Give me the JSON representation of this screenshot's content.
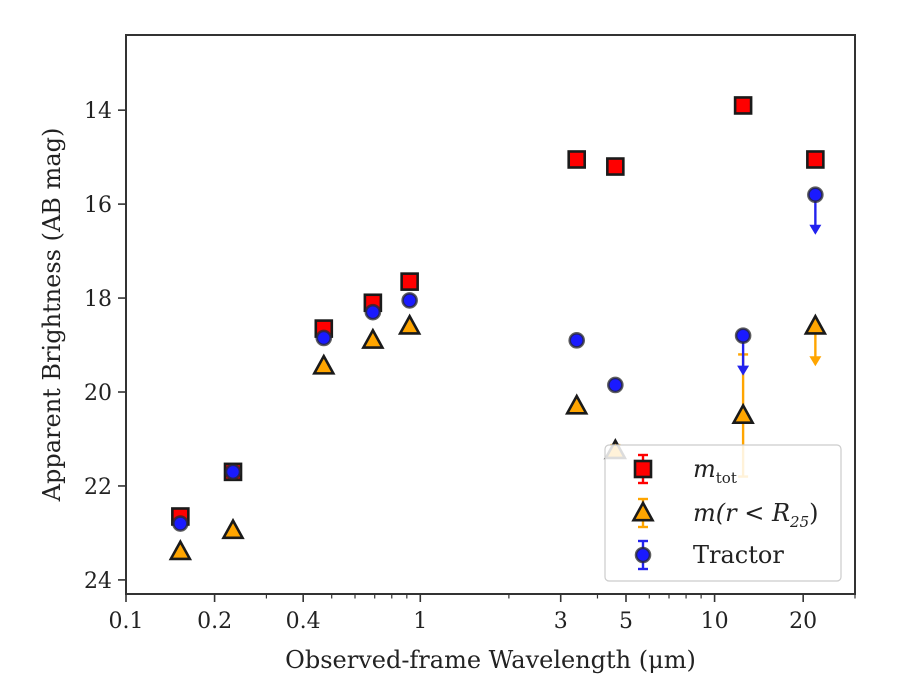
{
  "chart_data": {
    "type": "scatter",
    "title": "",
    "xlabel": "Observed-frame Wavelength (μm)",
    "ylabel": "Apparent Brightness (AB mag)",
    "xscale": "log",
    "xlim": [
      0.1,
      30
    ],
    "ylim": [
      24.3,
      12.4
    ],
    "y_inverted": true,
    "grid": false,
    "legend_placement": "lower-right",
    "xticks": [
      {
        "value": 0.1,
        "label": "0.1"
      },
      {
        "value": 0.2,
        "label": "0.2"
      },
      {
        "value": 0.4,
        "label": "0.4"
      },
      {
        "value": 1,
        "label": "1"
      },
      {
        "value": 3,
        "label": "3"
      },
      {
        "value": 5,
        "label": "5"
      },
      {
        "value": 10,
        "label": "10"
      },
      {
        "value": 20,
        "label": "20"
      }
    ],
    "yticks": [
      {
        "value": 14,
        "label": "14"
      },
      {
        "value": 16,
        "label": "16"
      },
      {
        "value": 18,
        "label": "18"
      },
      {
        "value": 20,
        "label": "20"
      },
      {
        "value": 22,
        "label": "22"
      },
      {
        "value": 24,
        "label": "24"
      }
    ],
    "series": [
      {
        "key": "m_tot",
        "legend_main": "m",
        "legend_sub": "tot",
        "legend_tail": "",
        "marker": "square",
        "color": "#ff0000",
        "errcolor": "#ff0000",
        "points": [
          {
            "x": 0.153,
            "y": 22.65,
            "err": 0.1
          },
          {
            "x": 0.231,
            "y": 21.7,
            "err": 0.06
          },
          {
            "x": 0.47,
            "y": 18.65,
            "err": 0.08
          },
          {
            "x": 0.69,
            "y": 18.1,
            "err": 0.08
          },
          {
            "x": 0.92,
            "y": 17.65,
            "err": 0.06
          },
          {
            "x": 3.4,
            "y": 15.05,
            "err": 0.04
          },
          {
            "x": 4.6,
            "y": 15.2,
            "err": 0.04
          },
          {
            "x": 12.5,
            "y": 13.9,
            "err": 0.04
          },
          {
            "x": 22.0,
            "y": 15.05,
            "err": 0.04
          }
        ]
      },
      {
        "key": "m_r25",
        "legend_main": "m(r < R",
        "legend_sub": "25",
        "legend_tail": ")",
        "marker": "triangle",
        "color": "#ffa500",
        "errcolor": "#ffa500",
        "points": [
          {
            "x": 0.153,
            "y": 23.4,
            "err": 0.06
          },
          {
            "x": 0.231,
            "y": 22.95,
            "err": 0.06
          },
          {
            "x": 0.47,
            "y": 19.45,
            "err": 0.04
          },
          {
            "x": 0.69,
            "y": 18.9,
            "err": 0.04
          },
          {
            "x": 0.92,
            "y": 18.6,
            "err": 0.04
          },
          {
            "x": 3.4,
            "y": 20.3,
            "err": 0.04
          },
          {
            "x": 4.6,
            "y": 21.25,
            "err": 0.12
          },
          {
            "x": 12.5,
            "y": 20.5,
            "err": 1.3
          },
          {
            "x": 22.0,
            "y": 18.6,
            "err": 0,
            "upper_limit": true
          }
        ]
      },
      {
        "key": "tractor",
        "legend_main": "Tractor",
        "legend_sub": "",
        "legend_tail": "",
        "marker": "circle",
        "color": "#1a1aff",
        "errcolor": "#2222ee",
        "points": [
          {
            "x": 0.153,
            "y": 22.8,
            "err": 0.05
          },
          {
            "x": 0.231,
            "y": 21.7,
            "err": 0.05
          },
          {
            "x": 0.47,
            "y": 18.85,
            "err": 0.05
          },
          {
            "x": 0.69,
            "y": 18.3,
            "err": 0.05
          },
          {
            "x": 0.92,
            "y": 18.05,
            "err": 0.05
          },
          {
            "x": 3.4,
            "y": 18.9,
            "err": 0.05
          },
          {
            "x": 4.6,
            "y": 19.85,
            "err": 0.05
          },
          {
            "x": 12.5,
            "y": 18.8,
            "err": 0,
            "upper_limit": true
          },
          {
            "x": 22.0,
            "y": 15.8,
            "err": 0,
            "upper_limit": true
          }
        ]
      }
    ]
  }
}
